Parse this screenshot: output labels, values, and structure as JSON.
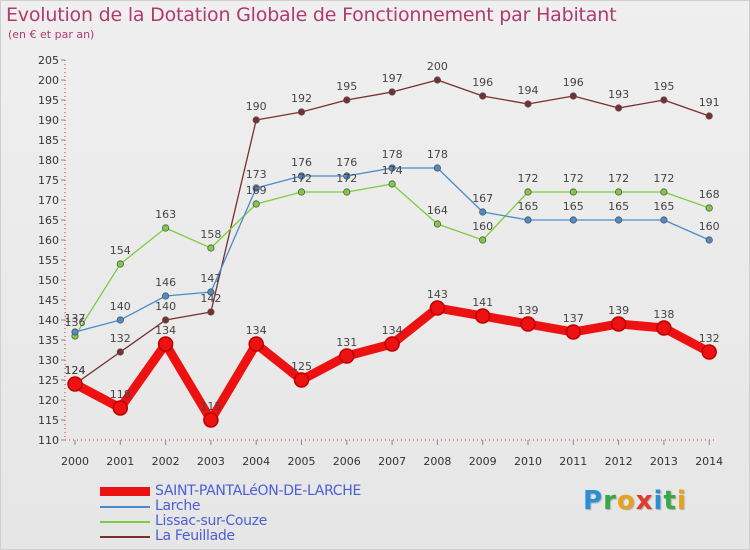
{
  "header": {
    "title": "Evolution de la Dotation Globale de Fonctionnement par Habitant",
    "subtitle": "(en € et par an)"
  },
  "logo": {
    "text": "Proxiti"
  },
  "colors": {
    "title": "#b03a6e",
    "saint": "#ee1111",
    "larche": "#4a8cc9",
    "lissac": "#7fcc40",
    "feuillade": "#7a2e2e"
  },
  "chart_data": {
    "type": "line",
    "title": "Evolution de la Dotation Globale de Fonctionnement par Habitant",
    "subtitle": "(en € et par an)",
    "x": [
      "2000",
      "2001",
      "2002",
      "2003",
      "2004",
      "2005",
      "2006",
      "2007",
      "2008",
      "2009",
      "2010",
      "2011",
      "2012",
      "2013",
      "2014"
    ],
    "ylim": [
      110,
      205
    ],
    "ytick_step": 5,
    "grid": false,
    "legend_placement": "bottom-left",
    "series": [
      {
        "name": "SAINT-PANTALéON-DE-LARCHE",
        "color": "#ee1111",
        "values": [
          124,
          118,
          134,
          115,
          134,
          125,
          131,
          134,
          143,
          141,
          139,
          137,
          139,
          138,
          132
        ]
      },
      {
        "name": "Larche",
        "color": "#4a8cc9",
        "values": [
          137,
          140,
          146,
          147,
          173,
          176,
          176,
          178,
          178,
          167,
          165,
          165,
          165,
          165,
          160
        ]
      },
      {
        "name": "Lissac-sur-Couze",
        "color": "#7fcc40",
        "values": [
          136,
          154,
          163,
          158,
          169,
          172,
          172,
          174,
          164,
          160,
          172,
          172,
          172,
          172,
          168
        ]
      },
      {
        "name": "La Feuillade",
        "color": "#7a2e2e",
        "values": [
          124,
          132,
          140,
          142,
          190,
          192,
          195,
          197,
          200,
          196,
          194,
          196,
          193,
          195,
          191
        ]
      }
    ]
  }
}
